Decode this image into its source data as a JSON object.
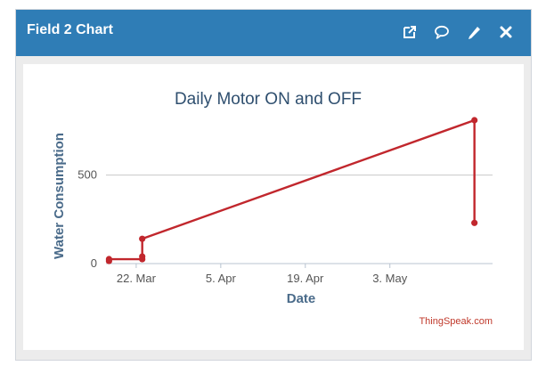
{
  "widget": {
    "title": "Field 2 Chart",
    "icons": [
      "external-link-icon",
      "comment-icon",
      "pencil-icon",
      "close-icon"
    ]
  },
  "colors": {
    "header": "#2f7db6",
    "series": "#c1272d",
    "grid": "#c8c8c8"
  },
  "chart_data": {
    "type": "line",
    "title": "Daily Motor ON and OFF",
    "xlabel": "Date",
    "ylabel": "Water Consumption",
    "credit": "ThingSpeak.com",
    "x_ticks": [
      {
        "date": "2022-03-22",
        "label": "22. Mar"
      },
      {
        "date": "2022-04-05",
        "label": "5. Apr"
      },
      {
        "date": "2022-04-19",
        "label": "19. Apr"
      },
      {
        "date": "2022-05-03",
        "label": "3. May"
      }
    ],
    "y_ticks": [
      0,
      500
    ],
    "xlim": [
      "2022-03-17",
      "2022-05-20"
    ],
    "ylim": [
      0,
      800
    ],
    "grid": true,
    "series": [
      {
        "points": [
          {
            "x": "2022-03-17T12:00",
            "y": 15
          },
          {
            "x": "2022-03-17T12:00",
            "y": 25
          },
          {
            "x": "2022-03-23T00:00",
            "y": 25
          },
          {
            "x": "2022-03-23T00:00",
            "y": 40
          },
          {
            "x": "2022-03-23T00:00",
            "y": 140
          },
          {
            "x": "2022-05-17T00:00",
            "y": 810
          },
          {
            "x": "2022-05-17T00:00",
            "y": 230
          }
        ]
      }
    ]
  }
}
